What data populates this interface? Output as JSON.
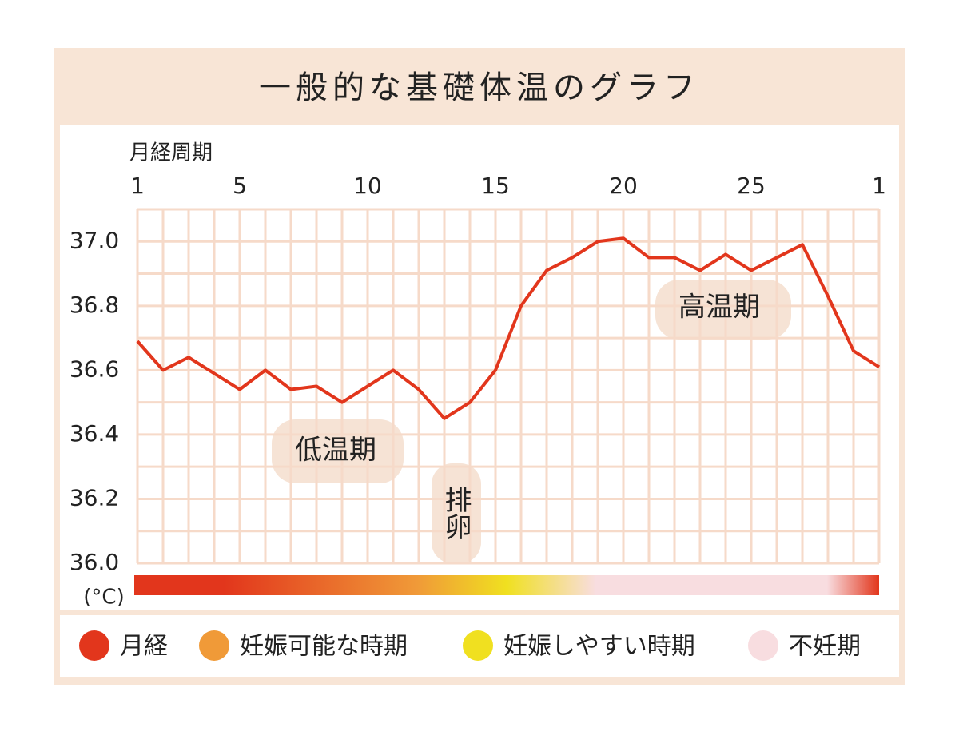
{
  "chart_data": {
    "type": "line",
    "title": "一般的な基礎体温のグラフ",
    "x_label": "月経周期",
    "y_label": "(°C)",
    "categories": [
      "1",
      null,
      null,
      null,
      "5",
      null,
      null,
      null,
      null,
      "10",
      null,
      null,
      null,
      null,
      "15",
      null,
      null,
      null,
      null,
      "20",
      null,
      null,
      null,
      null,
      "25",
      null,
      null,
      null,
      null,
      "1"
    ],
    "series": [
      {
        "name": "基礎体温",
        "color": "#e2361c",
        "values": [
          36.69,
          36.6,
          36.64,
          36.59,
          36.54,
          36.6,
          36.54,
          36.55,
          36.5,
          36.55,
          36.6,
          36.54,
          36.45,
          36.5,
          36.6,
          36.8,
          36.91,
          36.95,
          37.0,
          37.01,
          36.95,
          36.95,
          36.91,
          36.96,
          36.91,
          36.95,
          36.99,
          36.83,
          36.66,
          36.61
        ]
      }
    ],
    "ylim": [
      36.0,
      37.1
    ],
    "yticks": [
      {
        "value": 36.0,
        "label": "36.0"
      },
      {
        "value": 36.2,
        "label": "36.2"
      },
      {
        "value": 36.4,
        "label": "36.4"
      },
      {
        "value": 36.6,
        "label": "36.6"
      },
      {
        "value": 36.8,
        "label": "36.8"
      },
      {
        "value": 37.0,
        "label": "37.0"
      }
    ],
    "minor_yticks": [
      36.1,
      36.3,
      36.5,
      36.7,
      36.9,
      37.1
    ],
    "grid": true,
    "annotations": [
      "低温期",
      "排卵",
      "高温期"
    ],
    "phases": [
      {
        "name": "月経",
        "color": "#e2361c"
      },
      {
        "name": "妊娠可能な時期",
        "color": "#f09a38"
      },
      {
        "name": "妊娠しやすい時期",
        "color": "#f0e020"
      },
      {
        "name": "不妊期",
        "color": "#f8dde0"
      }
    ]
  }
}
